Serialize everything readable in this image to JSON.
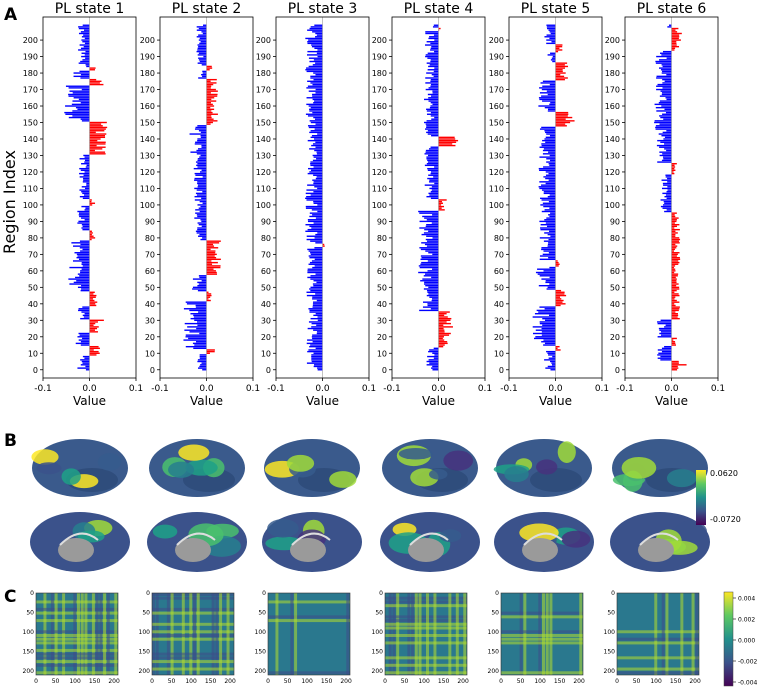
{
  "panels": {
    "a": "A",
    "b": "B",
    "c": "C"
  },
  "bar_charts": {
    "ylabel": "Region Index",
    "xlabel": "Value",
    "xticks": [
      "-0.1",
      "0.0",
      "0.1"
    ],
    "xlim": [
      -0.1,
      0.1
    ],
    "yticks": [
      "0",
      "10",
      "20",
      "30",
      "40",
      "50",
      "60",
      "70",
      "80",
      "90",
      "100",
      "110",
      "120",
      "130",
      "140",
      "150",
      "160",
      "170",
      "180",
      "190",
      "200"
    ],
    "ylim": [
      -5,
      214
    ],
    "positive_color": "#ff0000",
    "negative_color": "#0000ff",
    "titles": [
      "PL state 1",
      "PL state 2",
      "PL state 3",
      "PL state 4",
      "PL state 5",
      "PL state 6"
    ]
  },
  "brain_colorbar": {
    "max_label": "0.0620",
    "min_label": "-0.0720",
    "colormap": "viridis"
  },
  "matrix_colorbar": {
    "tick_labels": [
      "0.004",
      "0.002",
      "0.000",
      "-0.002",
      "-0.004"
    ],
    "colormap": "viridis"
  },
  "matrix_axes": {
    "ticks": [
      "0",
      "50",
      "100",
      "150",
      "200"
    ]
  },
  "chart_data": [
    {
      "type": "bar",
      "orientation": "horizontal",
      "title": "PL state 1",
      "xlabel": "Value",
      "ylabel": "Region Index",
      "n_regions": 210,
      "segments": [
        {
          "from": 0,
          "to": 8,
          "value": -0.022
        },
        {
          "from": 9,
          "to": 14,
          "value": 0.018
        },
        {
          "from": 15,
          "to": 22,
          "value": -0.025
        },
        {
          "from": 23,
          "to": 30,
          "value": 0.025
        },
        {
          "from": 31,
          "to": 38,
          "value": -0.02
        },
        {
          "from": 39,
          "to": 47,
          "value": 0.014
        },
        {
          "from": 48,
          "to": 78,
          "value": -0.04
        },
        {
          "from": 79,
          "to": 84,
          "value": 0.012
        },
        {
          "from": 85,
          "to": 99,
          "value": -0.022
        },
        {
          "from": 100,
          "to": 103,
          "value": 0.01
        },
        {
          "from": 104,
          "to": 130,
          "value": -0.018
        },
        {
          "from": 131,
          "to": 150,
          "value": 0.032
        },
        {
          "from": 151,
          "to": 172,
          "value": -0.045
        },
        {
          "from": 173,
          "to": 176,
          "value": 0.028
        },
        {
          "from": 177,
          "to": 181,
          "value": -0.028
        },
        {
          "from": 182,
          "to": 183,
          "value": 0.012
        },
        {
          "from": 184,
          "to": 209,
          "value": -0.02
        }
      ]
    },
    {
      "type": "bar",
      "orientation": "horizontal",
      "title": "PL state 2",
      "xlabel": "Value",
      "ylabel": "Region Index",
      "n_regions": 210,
      "segments": [
        {
          "from": 0,
          "to": 9,
          "value": -0.018
        },
        {
          "from": 10,
          "to": 12,
          "value": 0.02
        },
        {
          "from": 13,
          "to": 41,
          "value": -0.04
        },
        {
          "from": 42,
          "to": 47,
          "value": 0.01
        },
        {
          "from": 48,
          "to": 57,
          "value": -0.025
        },
        {
          "from": 58,
          "to": 78,
          "value": 0.025
        },
        {
          "from": 79,
          "to": 127,
          "value": -0.022
        },
        {
          "from": 128,
          "to": 148,
          "value": -0.03
        },
        {
          "from": 149,
          "to": 176,
          "value": 0.02
        },
        {
          "from": 177,
          "to": 181,
          "value": -0.015
        },
        {
          "from": 182,
          "to": 184,
          "value": 0.012
        },
        {
          "from": 185,
          "to": 209,
          "value": -0.018
        }
      ]
    },
    {
      "type": "bar",
      "orientation": "horizontal",
      "title": "PL state 3",
      "xlabel": "Value",
      "ylabel": "Region Index",
      "n_regions": 210,
      "segments": [
        {
          "from": 0,
          "to": 74,
          "value": -0.028
        },
        {
          "from": 75,
          "to": 76,
          "value": 0.004
        },
        {
          "from": 77,
          "to": 209,
          "value": -0.03
        }
      ]
    },
    {
      "type": "bar",
      "orientation": "horizontal",
      "title": "PL state 4",
      "xlabel": "Value",
      "ylabel": "Region Index",
      "n_regions": 210,
      "segments": [
        {
          "from": 0,
          "to": 13,
          "value": -0.022
        },
        {
          "from": 14,
          "to": 35,
          "value": 0.025
        },
        {
          "from": 36,
          "to": 96,
          "value": -0.035
        },
        {
          "from": 97,
          "to": 103,
          "value": 0.015
        },
        {
          "from": 104,
          "to": 135,
          "value": -0.025
        },
        {
          "from": 136,
          "to": 141,
          "value": 0.035
        },
        {
          "from": 142,
          "to": 205,
          "value": -0.025
        },
        {
          "from": 206,
          "to": 207,
          "value": 0.004
        },
        {
          "from": 208,
          "to": 209,
          "value": -0.01
        }
      ]
    },
    {
      "type": "bar",
      "orientation": "horizontal",
      "title": "PL state 5",
      "xlabel": "Value",
      "ylabel": "Region Index",
      "n_regions": 210,
      "segments": [
        {
          "from": 0,
          "to": 11,
          "value": -0.02
        },
        {
          "from": 12,
          "to": 14,
          "value": 0.012
        },
        {
          "from": 15,
          "to": 38,
          "value": -0.04
        },
        {
          "from": 39,
          "to": 48,
          "value": 0.02
        },
        {
          "from": 49,
          "to": 62,
          "value": -0.035
        },
        {
          "from": 63,
          "to": 66,
          "value": 0.008
        },
        {
          "from": 67,
          "to": 147,
          "value": -0.03
        },
        {
          "from": 148,
          "to": 156,
          "value": 0.035
        },
        {
          "from": 157,
          "to": 175,
          "value": -0.03
        },
        {
          "from": 176,
          "to": 186,
          "value": 0.022
        },
        {
          "from": 187,
          "to": 192,
          "value": -0.015
        },
        {
          "from": 193,
          "to": 197,
          "value": 0.012
        },
        {
          "from": 198,
          "to": 209,
          "value": -0.02
        }
      ]
    },
    {
      "type": "bar",
      "orientation": "horizontal",
      "title": "PL state 6",
      "xlabel": "Value",
      "ylabel": "Region Index",
      "n_regions": 210,
      "segments": [
        {
          "from": 0,
          "to": 5,
          "value": 0.03
        },
        {
          "from": 6,
          "to": 14,
          "value": -0.025
        },
        {
          "from": 15,
          "to": 19,
          "value": 0.01
        },
        {
          "from": 20,
          "to": 30,
          "value": -0.025
        },
        {
          "from": 31,
          "to": 95,
          "value": 0.015
        },
        {
          "from": 96,
          "to": 118,
          "value": -0.02
        },
        {
          "from": 119,
          "to": 125,
          "value": 0.01
        },
        {
          "from": 126,
          "to": 193,
          "value": -0.03
        },
        {
          "from": 194,
          "to": 207,
          "value": 0.018
        },
        {
          "from": 208,
          "to": 209,
          "value": -0.01
        }
      ]
    }
  ]
}
